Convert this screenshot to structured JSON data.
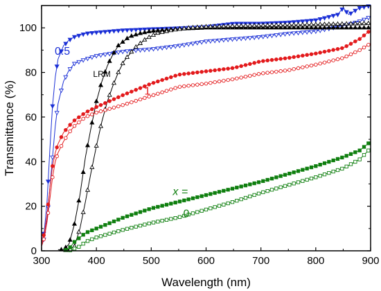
{
  "chart_data": {
    "type": "line",
    "xlabel": "Wavelength (nm)",
    "ylabel": "Transmittance (%)",
    "xlim": [
      300,
      900
    ],
    "ylim": [
      0,
      110
    ],
    "xticks": [
      300,
      400,
      500,
      600,
      700,
      800,
      900
    ],
    "yticks": [
      0,
      20,
      40,
      60,
      80,
      100
    ],
    "legend": "none",
    "grid": false,
    "annotations": [
      {
        "text": "0.5",
        "x": 338,
        "y": 88,
        "color": "#1a2fd6",
        "size": 16,
        "italic": false
      },
      {
        "text": "LRM",
        "x": 410,
        "y": 78,
        "color": "#000000",
        "size": 12,
        "italic": false
      },
      {
        "text": "1",
        "x": 493,
        "y": 70,
        "color": "#e31a1c",
        "size": 16,
        "italic": false
      },
      {
        "text": "x =",
        "x": 553,
        "y": 25,
        "color": "#0f7f0f",
        "size": 16,
        "italic": true
      },
      {
        "text": "0",
        "x": 564,
        "y": 15,
        "color": "#0f7f0f",
        "size": 16,
        "italic": false
      }
    ],
    "series": [
      {
        "color": "#1a2fd6",
        "marker": "tri-down",
        "filled": true,
        "points": [
          [
            300,
            3
          ],
          [
            305,
            9
          ],
          [
            310,
            22
          ],
          [
            315,
            45
          ],
          [
            320,
            65
          ],
          [
            325,
            78
          ],
          [
            330,
            86
          ],
          [
            340,
            92
          ],
          [
            350,
            94.5
          ],
          [
            360,
            96
          ],
          [
            380,
            97.5
          ],
          [
            400,
            98
          ],
          [
            450,
            99
          ],
          [
            500,
            99.5
          ],
          [
            560,
            100
          ],
          [
            600,
            100.5
          ],
          [
            650,
            102
          ],
          [
            700,
            102
          ],
          [
            750,
            102.5
          ],
          [
            800,
            103.5
          ],
          [
            840,
            106
          ],
          [
            850,
            109
          ],
          [
            860,
            106
          ],
          [
            880,
            109
          ],
          [
            900,
            110
          ]
        ]
      },
      {
        "color": "#1a2fd6",
        "marker": "tri-down",
        "filled": false,
        "points": [
          [
            300,
            2
          ],
          [
            305,
            6
          ],
          [
            310,
            14
          ],
          [
            315,
            28
          ],
          [
            320,
            42
          ],
          [
            325,
            56
          ],
          [
            330,
            66
          ],
          [
            340,
            76
          ],
          [
            350,
            81
          ],
          [
            360,
            84
          ],
          [
            380,
            86
          ],
          [
            400,
            87.5
          ],
          [
            450,
            89.5
          ],
          [
            500,
            90.5
          ],
          [
            550,
            92
          ],
          [
            600,
            94
          ],
          [
            650,
            95
          ],
          [
            700,
            96
          ],
          [
            750,
            97.5
          ],
          [
            800,
            98.5
          ],
          [
            850,
            101
          ],
          [
            880,
            103
          ],
          [
            900,
            105
          ]
        ]
      },
      {
        "color": "#000000",
        "marker": "tri-up",
        "filled": true,
        "points": [
          [
            330,
            0.5
          ],
          [
            340,
            0.5
          ],
          [
            350,
            3
          ],
          [
            360,
            12
          ],
          [
            370,
            25
          ],
          [
            380,
            42
          ],
          [
            390,
            55
          ],
          [
            400,
            67
          ],
          [
            410,
            76
          ],
          [
            420,
            83
          ],
          [
            430,
            88
          ],
          [
            440,
            92
          ],
          [
            450,
            94
          ],
          [
            460,
            96
          ],
          [
            480,
            97.5
          ],
          [
            500,
            98.5
          ],
          [
            550,
            99.5
          ],
          [
            600,
            100
          ],
          [
            700,
            100
          ],
          [
            800,
            100
          ],
          [
            900,
            100
          ]
        ]
      },
      {
        "color": "#000000",
        "marker": "tri-up",
        "filled": false,
        "points": [
          [
            340,
            0
          ],
          [
            350,
            0.5
          ],
          [
            360,
            2
          ],
          [
            370,
            10
          ],
          [
            380,
            22
          ],
          [
            390,
            35
          ],
          [
            400,
            47
          ],
          [
            410,
            58
          ],
          [
            420,
            67
          ],
          [
            430,
            74
          ],
          [
            440,
            80
          ],
          [
            450,
            85
          ],
          [
            470,
            91
          ],
          [
            490,
            95
          ],
          [
            510,
            97.5
          ],
          [
            540,
            99
          ],
          [
            570,
            100
          ],
          [
            600,
            100.5
          ],
          [
            700,
            101
          ],
          [
            800,
            101.5
          ],
          [
            900,
            102
          ]
        ]
      },
      {
        "color": "#e31a1c",
        "marker": "circle",
        "filled": true,
        "points": [
          [
            300,
            3
          ],
          [
            305,
            8
          ],
          [
            310,
            16
          ],
          [
            315,
            28
          ],
          [
            320,
            38
          ],
          [
            325,
            44
          ],
          [
            330,
            48
          ],
          [
            340,
            53
          ],
          [
            350,
            56
          ],
          [
            360,
            58.5
          ],
          [
            380,
            62
          ],
          [
            400,
            64.5
          ],
          [
            450,
            70
          ],
          [
            500,
            75
          ],
          [
            550,
            79
          ],
          [
            600,
            80.5
          ],
          [
            650,
            82
          ],
          [
            700,
            85
          ],
          [
            750,
            86.5
          ],
          [
            800,
            88.5
          ],
          [
            850,
            91
          ],
          [
            880,
            95
          ],
          [
            900,
            99
          ]
        ]
      },
      {
        "color": "#e31a1c",
        "marker": "circle",
        "filled": false,
        "points": [
          [
            300,
            2
          ],
          [
            305,
            6
          ],
          [
            310,
            13
          ],
          [
            315,
            23
          ],
          [
            320,
            33
          ],
          [
            325,
            40
          ],
          [
            330,
            44
          ],
          [
            340,
            49
          ],
          [
            350,
            53
          ],
          [
            360,
            56
          ],
          [
            380,
            60
          ],
          [
            400,
            62
          ],
          [
            450,
            65.5
          ],
          [
            500,
            69.5
          ],
          [
            550,
            73.5
          ],
          [
            600,
            75
          ],
          [
            650,
            77
          ],
          [
            700,
            79.5
          ],
          [
            750,
            81
          ],
          [
            800,
            83.5
          ],
          [
            850,
            86.5
          ],
          [
            880,
            90
          ],
          [
            900,
            93
          ]
        ]
      },
      {
        "color": "#0f7f0f",
        "marker": "square",
        "filled": true,
        "points": [
          [
            340,
            0
          ],
          [
            350,
            1
          ],
          [
            360,
            4
          ],
          [
            370,
            6
          ],
          [
            380,
            8
          ],
          [
            400,
            10
          ],
          [
            450,
            15
          ],
          [
            500,
            19
          ],
          [
            550,
            22
          ],
          [
            600,
            25
          ],
          [
            650,
            28
          ],
          [
            700,
            31
          ],
          [
            750,
            34.5
          ],
          [
            800,
            38
          ],
          [
            850,
            42
          ],
          [
            880,
            45
          ],
          [
            900,
            49
          ]
        ]
      },
      {
        "color": "#0f7f0f",
        "marker": "square",
        "filled": false,
        "points": [
          [
            350,
            0
          ],
          [
            360,
            1
          ],
          [
            370,
            2
          ],
          [
            380,
            4
          ],
          [
            400,
            6
          ],
          [
            450,
            9.5
          ],
          [
            500,
            12.5
          ],
          [
            550,
            15
          ],
          [
            600,
            18.5
          ],
          [
            650,
            22
          ],
          [
            700,
            26
          ],
          [
            750,
            29.5
          ],
          [
            800,
            33
          ],
          [
            850,
            37
          ],
          [
            880,
            41
          ],
          [
            900,
            46
          ]
        ]
      }
    ]
  }
}
